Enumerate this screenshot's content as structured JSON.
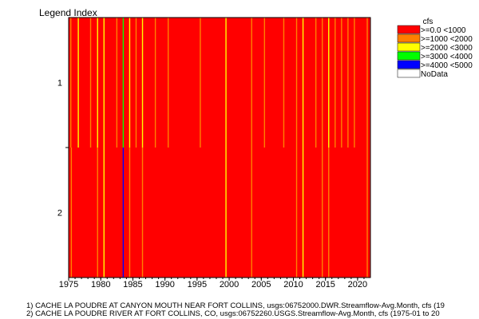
{
  "chart_data": {
    "type": "heatmap",
    "title": "",
    "ylabel": "Legend Index",
    "xlabel": "",
    "x_range": [
      "1975-01",
      "2021-12"
    ],
    "x_ticks": [
      "1975",
      "1980",
      "1985",
      "1990",
      "1995",
      "2000",
      "2005",
      "2010",
      "2015",
      "2020"
    ],
    "rows": [
      {
        "label": "1",
        "base_class": ">=0.0 <1000",
        "highlights": [
          {
            "date": "1975-04",
            "class": ">=1000 <2000"
          },
          {
            "date": "1976-06",
            "class": ">=2000 <3000"
          },
          {
            "date": "1978-05",
            "class": ">=1000 <2000"
          },
          {
            "date": "1979-06",
            "class": ">=2000 <3000"
          },
          {
            "date": "1980-06",
            "class": ">=2000 <3000"
          },
          {
            "date": "1982-06",
            "class": ">=1000 <2000"
          },
          {
            "date": "1983-06",
            "class": ">=3000 <4000"
          },
          {
            "date": "1984-06",
            "class": ">=2000 <3000"
          },
          {
            "date": "1985-06",
            "class": ">=1000 <2000"
          },
          {
            "date": "1986-06",
            "class": ">=2000 <3000"
          },
          {
            "date": "1988-06",
            "class": ">=1000 <2000"
          },
          {
            "date": "1990-06",
            "class": ">=1000 <2000"
          },
          {
            "date": "1995-06",
            "class": ">=1000 <2000"
          },
          {
            "date": "1999-06",
            "class": ">=2000 <3000"
          },
          {
            "date": "2003-06",
            "class": ">=1000 <2000"
          },
          {
            "date": "2005-06",
            "class": ">=1000 <2000"
          },
          {
            "date": "2008-06",
            "class": ">=1000 <2000"
          },
          {
            "date": "2010-06",
            "class": ">=1000 <2000"
          },
          {
            "date": "2011-06",
            "class": ">=2000 <3000"
          },
          {
            "date": "2013-06",
            "class": ">=1000 <2000"
          },
          {
            "date": "2014-06",
            "class": ">=1000 <2000"
          },
          {
            "date": "2015-06",
            "class": ">=2000 <3000"
          },
          {
            "date": "2016-06",
            "class": ">=1000 <2000"
          },
          {
            "date": "2017-06",
            "class": ">=1000 <2000"
          },
          {
            "date": "2018-06",
            "class": ">=1000 <2000"
          },
          {
            "date": "2019-06",
            "class": ">=1000 <2000"
          },
          {
            "date": "2021-06",
            "class": ">=1000 <2000"
          }
        ]
      },
      {
        "label": "2",
        "base_class": ">=0.0 <1000",
        "highlights": [
          {
            "date": "1975-05",
            "class": ">=1000 <2000"
          },
          {
            "date": "1979-06",
            "class": ">=1000 <2000"
          },
          {
            "date": "1980-06",
            "class": ">=2000 <3000"
          },
          {
            "date": "1983-06",
            "class": ">=4000 <5000"
          },
          {
            "date": "1984-06",
            "class": ">=1000 <2000"
          },
          {
            "date": "1986-06",
            "class": ">=1000 <2000"
          },
          {
            "date": "1999-06",
            "class": ">=2000 <3000"
          },
          {
            "date": "2003-06",
            "class": ">=1000 <2000"
          },
          {
            "date": "2010-06",
            "class": ">=1000 <2000"
          },
          {
            "date": "2011-06",
            "class": ">=2000 <3000"
          },
          {
            "date": "2014-06",
            "class": ">=1000 <2000"
          },
          {
            "date": "2015-06",
            "class": ">=1000 <2000"
          },
          {
            "date": "2021-06",
            "class": ">=1000 <2000"
          }
        ]
      }
    ],
    "legend": {
      "title": "cfs",
      "placement": "top-right",
      "entries": [
        {
          "label": ">=0.0 <1000",
          "color": "#ff0000"
        },
        {
          "label": ">=1000 <2000",
          "color": "#ff8000"
        },
        {
          "label": ">=2000 <3000",
          "color": "#ffff00"
        },
        {
          "label": ">=3000 <4000",
          "color": "#00ff00"
        },
        {
          "label": ">=4000 <5000",
          "color": "#0000ff"
        },
        {
          "label": "NoData",
          "color": "#ffffff"
        }
      ]
    },
    "footnotes": [
      "1) CACHE LA POUDRE AT CANYON MOUTH NEAR FORT COLLINS, usgs:06752000.DWR.Streamflow-Avg.Month, cfs (19",
      "2) CACHE LA POUDRE RIVER AT FORT COLLINS, CO, usgs:06752260.USGS.Streamflow-Avg.Month, cfs (1975-01 to 20"
    ]
  }
}
